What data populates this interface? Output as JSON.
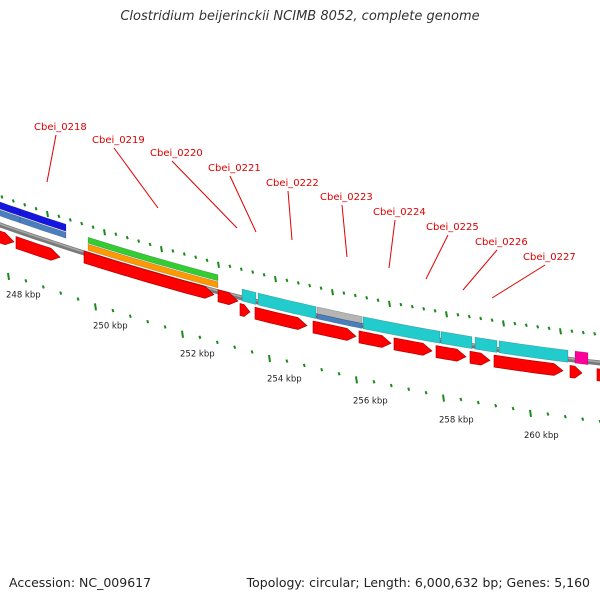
{
  "header": {
    "title": "Clostridium beijerinckii NCIMB 8052, complete genome"
  },
  "footer": {
    "accession": "Accession: NC_009617",
    "summary": "Topology: circular; Length: 6,000,632 bp; Genes: 5,160"
  },
  "colors": {
    "cds": "#ff0000",
    "backbone": "#8c8c8c",
    "tick": "#1a8a1a",
    "label": "#e00000",
    "blue": "#1515e0",
    "steel": "#4a7fbf",
    "green": "#33cc33",
    "orange": "#ff9900",
    "cyan": "#22cccc",
    "grey": "#b5b5b5",
    "magenta": "#ff0099"
  },
  "axis": {
    "kbp_labels": [
      "248 kbp",
      "250 kbp",
      "252 kbp",
      "254 kbp",
      "256 kbp",
      "258 kbp",
      "260 kbp"
    ]
  },
  "genes": [
    {
      "label": "Cbei_0218"
    },
    {
      "label": "Cbei_0219"
    },
    {
      "label": "Cbei_0220"
    },
    {
      "label": "Cbei_0221"
    },
    {
      "label": "Cbei_0222"
    },
    {
      "label": "Cbei_0223"
    },
    {
      "label": "Cbei_0224"
    },
    {
      "label": "Cbei_0225"
    },
    {
      "label": "Cbei_0226"
    },
    {
      "label": "Cbei_0227"
    }
  ]
}
